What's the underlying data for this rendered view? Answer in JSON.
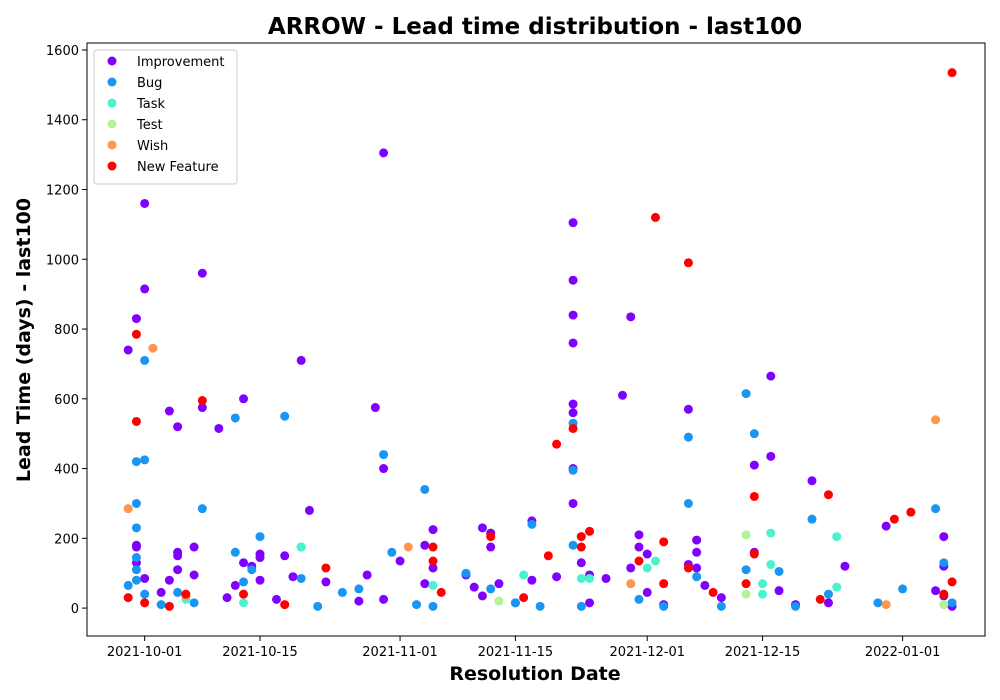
{
  "chart_data": {
    "type": "scatter",
    "title": "ARROW - Lead time distribution - last100",
    "xlabel": "Resolution Date",
    "ylabel": "Lead Time (days) - last100",
    "x_type": "date",
    "xlim": [
      "2021-09-24",
      "2022-01-11"
    ],
    "ylim": [
      -80,
      1620
    ],
    "x_ticks": [
      "2021-10-01",
      "2021-10-15",
      "2021-11-01",
      "2021-11-15",
      "2021-12-01",
      "2021-12-15",
      "2022-01-01"
    ],
    "y_ticks": [
      0,
      200,
      400,
      600,
      800,
      1000,
      1200,
      1400,
      1600
    ],
    "grid": false,
    "legend_position": "top-left",
    "series": [
      {
        "name": "Improvement",
        "color": "#8000ff",
        "points": [
          [
            "2021-09-29",
            740
          ],
          [
            "2021-09-30",
            180
          ],
          [
            "2021-09-30",
            130
          ],
          [
            "2021-09-30",
            175
          ],
          [
            "2021-09-30",
            830
          ],
          [
            "2021-10-01",
            1160
          ],
          [
            "2021-10-01",
            915
          ],
          [
            "2021-10-01",
            85
          ],
          [
            "2021-10-03",
            45
          ],
          [
            "2021-10-04",
            80
          ],
          [
            "2021-10-04",
            565
          ],
          [
            "2021-10-05",
            520
          ],
          [
            "2021-10-05",
            160
          ],
          [
            "2021-10-05",
            150
          ],
          [
            "2021-10-05",
            110
          ],
          [
            "2021-10-07",
            175
          ],
          [
            "2021-10-07",
            95
          ],
          [
            "2021-10-08",
            575
          ],
          [
            "2021-10-08",
            960
          ],
          [
            "2021-10-10",
            515
          ],
          [
            "2021-10-11",
            30
          ],
          [
            "2021-10-12",
            65
          ],
          [
            "2021-10-13",
            600
          ],
          [
            "2021-10-13",
            130
          ],
          [
            "2021-10-14",
            120
          ],
          [
            "2021-10-15",
            155
          ],
          [
            "2021-10-15",
            145
          ],
          [
            "2021-10-15",
            80
          ],
          [
            "2021-10-17",
            25
          ],
          [
            "2021-10-18",
            150
          ],
          [
            "2021-10-19",
            90
          ],
          [
            "2021-10-20",
            710
          ],
          [
            "2021-10-21",
            280
          ],
          [
            "2021-10-23",
            75
          ],
          [
            "2021-10-27",
            20
          ],
          [
            "2021-10-28",
            95
          ],
          [
            "2021-10-29",
            575
          ],
          [
            "2021-10-30",
            1305
          ],
          [
            "2021-10-30",
            400
          ],
          [
            "2021-10-30",
            25
          ],
          [
            "2021-11-01",
            135
          ],
          [
            "2021-11-04",
            180
          ],
          [
            "2021-11-04",
            70
          ],
          [
            "2021-11-05",
            225
          ],
          [
            "2021-11-05",
            115
          ],
          [
            "2021-11-09",
            95
          ],
          [
            "2021-11-10",
            60
          ],
          [
            "2021-11-11",
            230
          ],
          [
            "2021-11-11",
            35
          ],
          [
            "2021-11-12",
            175
          ],
          [
            "2021-11-12",
            215
          ],
          [
            "2021-11-13",
            70
          ],
          [
            "2021-11-15",
            15
          ],
          [
            "2021-11-17",
            250
          ],
          [
            "2021-11-17",
            80
          ],
          [
            "2021-11-20",
            90
          ],
          [
            "2021-11-22",
            1105
          ],
          [
            "2021-11-22",
            940
          ],
          [
            "2021-11-22",
            840
          ],
          [
            "2021-11-22",
            760
          ],
          [
            "2021-11-22",
            585
          ],
          [
            "2021-11-22",
            560
          ],
          [
            "2021-11-22",
            400
          ],
          [
            "2021-11-22",
            300
          ],
          [
            "2021-11-23",
            130
          ],
          [
            "2021-11-24",
            95
          ],
          [
            "2021-11-24",
            15
          ],
          [
            "2021-11-26",
            85
          ],
          [
            "2021-11-28",
            610
          ],
          [
            "2021-11-29",
            835
          ],
          [
            "2021-11-29",
            115
          ],
          [
            "2021-11-30",
            210
          ],
          [
            "2021-11-30",
            175
          ],
          [
            "2021-12-01",
            155
          ],
          [
            "2021-12-01",
            45
          ],
          [
            "2021-12-03",
            10
          ],
          [
            "2021-12-06",
            570
          ],
          [
            "2021-12-06",
            125
          ],
          [
            "2021-12-07",
            195
          ],
          [
            "2021-12-07",
            160
          ],
          [
            "2021-12-07",
            115
          ],
          [
            "2021-12-08",
            65
          ],
          [
            "2021-12-10",
            30
          ],
          [
            "2021-12-14",
            410
          ],
          [
            "2021-12-14",
            160
          ],
          [
            "2021-12-16",
            665
          ],
          [
            "2021-12-16",
            435
          ],
          [
            "2021-12-17",
            50
          ],
          [
            "2021-12-19",
            10
          ],
          [
            "2021-12-21",
            365
          ],
          [
            "2021-12-23",
            15
          ],
          [
            "2021-12-25",
            120
          ],
          [
            "2021-12-30",
            235
          ],
          [
            "2022-01-05",
            50
          ],
          [
            "2022-01-06",
            120
          ],
          [
            "2022-01-06",
            205
          ],
          [
            "2022-01-06",
            35
          ],
          [
            "2022-01-07",
            5
          ]
        ]
      },
      {
        "name": "Bug",
        "color": "#1996f3",
        "points": [
          [
            "2021-09-29",
            65
          ],
          [
            "2021-09-30",
            420
          ],
          [
            "2021-09-30",
            300
          ],
          [
            "2021-09-30",
            230
          ],
          [
            "2021-09-30",
            145
          ],
          [
            "2021-09-30",
            110
          ],
          [
            "2021-09-30",
            80
          ],
          [
            "2021-10-01",
            710
          ],
          [
            "2021-10-01",
            425
          ],
          [
            "2021-10-01",
            40
          ],
          [
            "2021-10-03",
            10
          ],
          [
            "2021-10-05",
            45
          ],
          [
            "2021-10-07",
            15
          ],
          [
            "2021-10-08",
            285
          ],
          [
            "2021-10-12",
            545
          ],
          [
            "2021-10-12",
            160
          ],
          [
            "2021-10-13",
            75
          ],
          [
            "2021-10-14",
            110
          ],
          [
            "2021-10-15",
            205
          ],
          [
            "2021-10-18",
            550
          ],
          [
            "2021-10-20",
            175
          ],
          [
            "2021-10-20",
            85
          ],
          [
            "2021-10-22",
            5
          ],
          [
            "2021-10-25",
            45
          ],
          [
            "2021-10-27",
            55
          ],
          [
            "2021-10-30",
            440
          ],
          [
            "2021-10-31",
            160
          ],
          [
            "2021-11-03",
            10
          ],
          [
            "2021-11-04",
            340
          ],
          [
            "2021-11-05",
            5
          ],
          [
            "2021-11-09",
            100
          ],
          [
            "2021-11-12",
            55
          ],
          [
            "2021-11-15",
            15
          ],
          [
            "2021-11-17",
            240
          ],
          [
            "2021-11-18",
            5
          ],
          [
            "2021-11-22",
            530
          ],
          [
            "2021-11-22",
            395
          ],
          [
            "2021-11-22",
            180
          ],
          [
            "2021-11-23",
            5
          ],
          [
            "2021-11-30",
            25
          ],
          [
            "2021-12-03",
            5
          ],
          [
            "2021-12-06",
            490
          ],
          [
            "2021-12-06",
            300
          ],
          [
            "2021-12-07",
            90
          ],
          [
            "2021-12-10",
            5
          ],
          [
            "2021-12-13",
            615
          ],
          [
            "2021-12-13",
            110
          ],
          [
            "2021-12-14",
            500
          ],
          [
            "2021-12-17",
            105
          ],
          [
            "2021-12-19",
            5
          ],
          [
            "2021-12-21",
            255
          ],
          [
            "2021-12-23",
            40
          ],
          [
            "2021-12-29",
            15
          ],
          [
            "2022-01-01",
            55
          ],
          [
            "2022-01-05",
            285
          ],
          [
            "2022-01-06",
            130
          ],
          [
            "2022-01-07",
            15
          ]
        ]
      },
      {
        "name": "Task",
        "color": "#4cf2ce",
        "points": [
          [
            "2021-10-06",
            25
          ],
          [
            "2021-10-13",
            15
          ],
          [
            "2021-10-20",
            175
          ],
          [
            "2021-11-05",
            65
          ],
          [
            "2021-11-16",
            95
          ],
          [
            "2021-11-23",
            85
          ],
          [
            "2021-11-24",
            85
          ],
          [
            "2021-12-01",
            115
          ],
          [
            "2021-12-02",
            135
          ],
          [
            "2021-12-15",
            70
          ],
          [
            "2021-12-15",
            40
          ],
          [
            "2021-12-16",
            215
          ],
          [
            "2021-12-16",
            125
          ],
          [
            "2021-12-24",
            60
          ],
          [
            "2021-12-24",
            205
          ]
        ]
      },
      {
        "name": "Test",
        "color": "#b2f396",
        "points": [
          [
            "2021-10-06",
            35
          ],
          [
            "2021-11-13",
            20
          ],
          [
            "2021-12-13",
            210
          ],
          [
            "2021-12-13",
            40
          ],
          [
            "2022-01-06",
            10
          ]
        ]
      },
      {
        "name": "Wish",
        "color": "#ff964f",
        "points": [
          [
            "2021-09-29",
            285
          ],
          [
            "2021-10-02",
            745
          ],
          [
            "2021-10-06",
            35
          ],
          [
            "2021-11-02",
            175
          ],
          [
            "2021-11-29",
            70
          ],
          [
            "2021-12-30",
            10
          ],
          [
            "2022-01-05",
            540
          ]
        ]
      },
      {
        "name": "New Feature",
        "color": "#ff0000",
        "points": [
          [
            "2021-09-29",
            30
          ],
          [
            "2021-09-30",
            785
          ],
          [
            "2021-09-30",
            535
          ],
          [
            "2021-10-01",
            15
          ],
          [
            "2021-10-04",
            5
          ],
          [
            "2021-10-06",
            40
          ],
          [
            "2021-10-08",
            595
          ],
          [
            "2021-10-13",
            40
          ],
          [
            "2021-10-18",
            10
          ],
          [
            "2021-10-23",
            115
          ],
          [
            "2021-11-05",
            175
          ],
          [
            "2021-11-05",
            135
          ],
          [
            "2021-11-06",
            45
          ],
          [
            "2021-11-12",
            205
          ],
          [
            "2021-11-16",
            30
          ],
          [
            "2021-11-19",
            150
          ],
          [
            "2021-11-20",
            470
          ],
          [
            "2021-11-22",
            515
          ],
          [
            "2021-11-23",
            205
          ],
          [
            "2021-11-23",
            175
          ],
          [
            "2021-11-24",
            220
          ],
          [
            "2021-11-30",
            135
          ],
          [
            "2021-12-02",
            1120
          ],
          [
            "2021-12-03",
            190
          ],
          [
            "2021-12-03",
            70
          ],
          [
            "2021-12-06",
            990
          ],
          [
            "2021-12-06",
            115
          ],
          [
            "2021-12-09",
            45
          ],
          [
            "2021-12-13",
            70
          ],
          [
            "2021-12-14",
            320
          ],
          [
            "2021-12-14",
            155
          ],
          [
            "2021-12-22",
            25
          ],
          [
            "2021-12-23",
            325
          ],
          [
            "2021-12-31",
            255
          ],
          [
            "2022-01-02",
            275
          ],
          [
            "2022-01-06",
            40
          ],
          [
            "2022-01-07",
            1535
          ],
          [
            "2022-01-07",
            75
          ]
        ]
      }
    ]
  }
}
